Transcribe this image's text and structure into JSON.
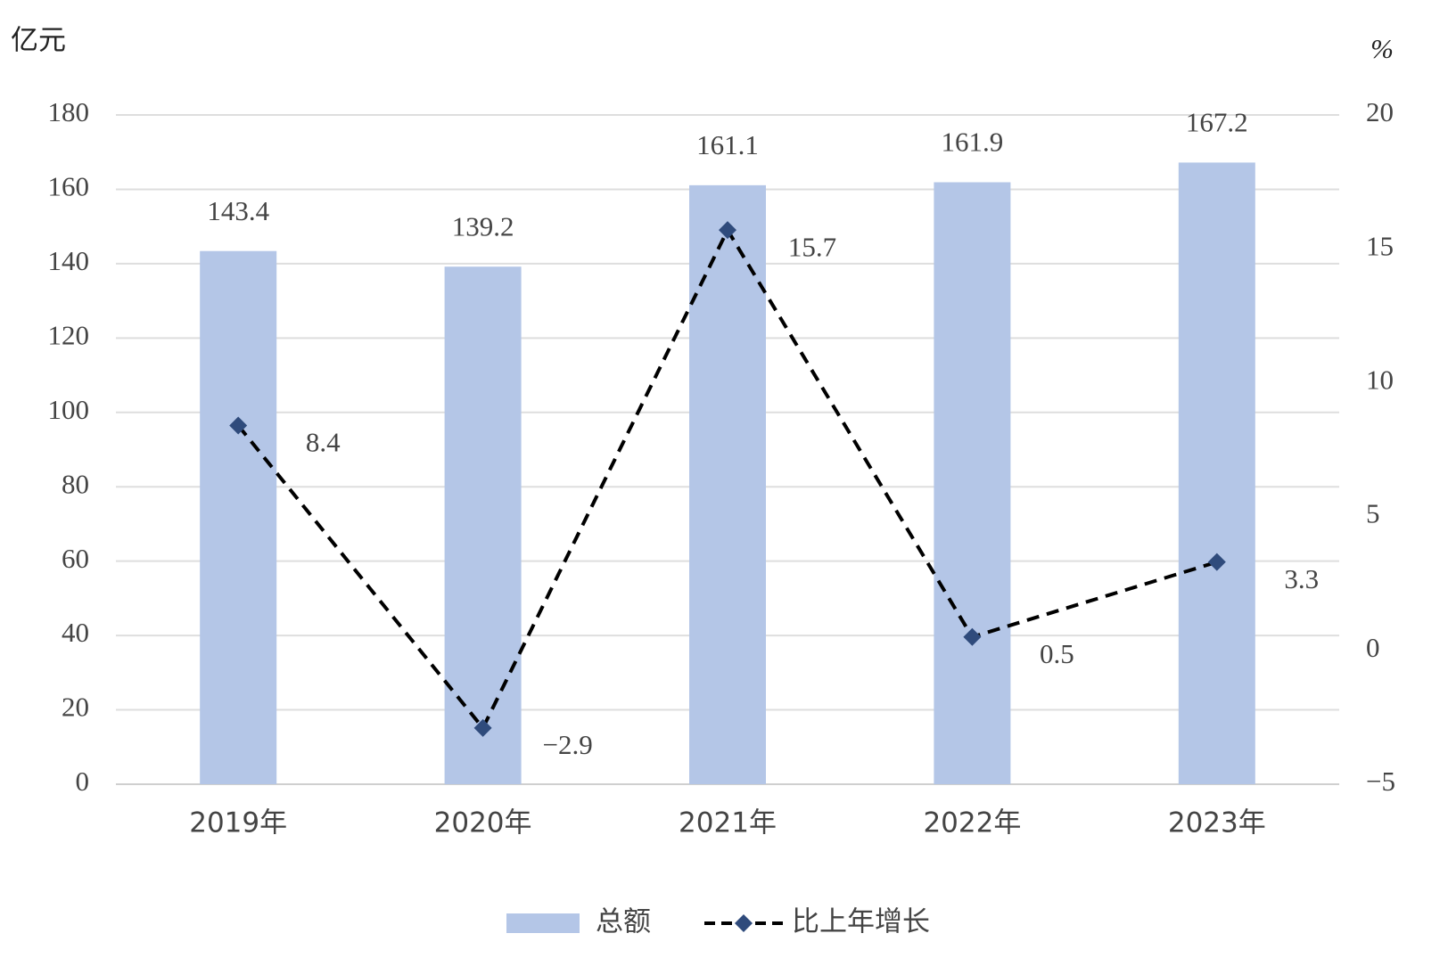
{
  "chart_data": {
    "type": "combo",
    "y_label": "亿元",
    "y2_label": "%",
    "categories": [
      "2019年",
      "2020年",
      "2021年",
      "2022年",
      "2023年"
    ],
    "series": [
      {
        "name": "总额",
        "type": "bar",
        "color": "#b4c6e7",
        "values": [
          143.4,
          139.2,
          161.1,
          161.9,
          167.2
        ]
      },
      {
        "name": "比上年增长",
        "type": "line",
        "axis": "y2",
        "color": "#000000",
        "marker_color": "#2f4b7c",
        "dashed": true,
        "values": [
          8.4,
          -2.9,
          15.7,
          0.5,
          3.3
        ],
        "value_labels": [
          "8.4",
          "−2.9",
          "15.7",
          "0.5",
          "3.3"
        ]
      }
    ],
    "ylim": [
      0,
      180
    ],
    "yticks": [
      0,
      20,
      40,
      60,
      80,
      100,
      120,
      140,
      160,
      180
    ],
    "y2lim": [
      -5,
      20
    ],
    "y2ticks": [
      {
        "value": -5,
        "label": "−5"
      },
      0,
      5,
      10,
      15,
      20
    ],
    "grid": true,
    "legend": "bottom"
  }
}
